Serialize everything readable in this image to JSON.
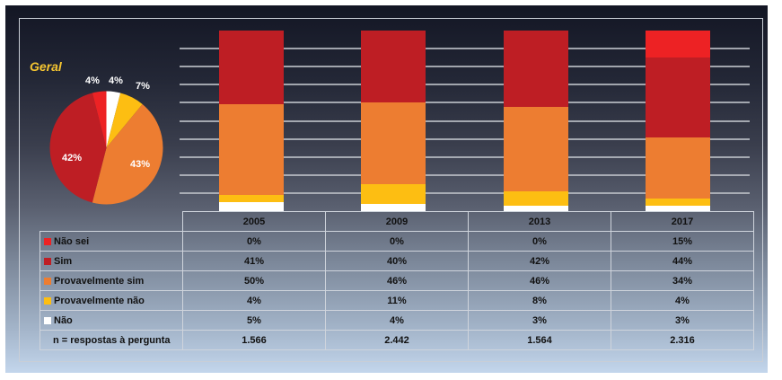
{
  "pie": {
    "title": "Geral",
    "slices": [
      {
        "label": "Não",
        "value": 4,
        "display": "4%",
        "color": "#FFFFFF"
      },
      {
        "label": "Provavelmente não",
        "value": 7,
        "display": "7%",
        "color": "#FDBE12"
      },
      {
        "label": "Provavelmente sim",
        "value": 43,
        "display": "43%",
        "color": "#ED7D31"
      },
      {
        "label": "Sim",
        "value": 42,
        "display": "42%",
        "color": "#BE1E24"
      },
      {
        "label": "Não sei",
        "value": 4,
        "display": "4%",
        "color": "#ED2224"
      }
    ]
  },
  "table": {
    "years": [
      "2005",
      "2009",
      "2013",
      "2017"
    ],
    "rows": [
      {
        "label": "Não sei",
        "color": "#ED2224",
        "values": [
          "0%",
          "0%",
          "0%",
          "15%"
        ]
      },
      {
        "label": "Sim",
        "color": "#BE1E24",
        "values": [
          "41%",
          "40%",
          "42%",
          "44%"
        ]
      },
      {
        "label": "Provavelmente sim",
        "color": "#ED7D31",
        "values": [
          "50%",
          "46%",
          "46%",
          "34%"
        ]
      },
      {
        "label": "Provavelmente não",
        "color": "#FDBE12",
        "values": [
          "4%",
          "11%",
          "8%",
          "4%"
        ]
      },
      {
        "label": "Não",
        "color": "#FFFFFF",
        "values": [
          "5%",
          "4%",
          "3%",
          "3%"
        ]
      }
    ],
    "n_row": {
      "label": "n = respostas à pergunta",
      "values": [
        "1.566",
        "2.442",
        "1.564",
        "2.316"
      ]
    }
  },
  "chart_data": [
    {
      "type": "pie",
      "title": "Geral",
      "categories": [
        "Não",
        "Provavelmente não",
        "Provavelmente sim",
        "Sim",
        "Não sei"
      ],
      "values": [
        4,
        7,
        43,
        42,
        4
      ],
      "colors": [
        "#FFFFFF",
        "#FDBE12",
        "#ED7D31",
        "#BE1E24",
        "#ED2224"
      ]
    },
    {
      "type": "bar",
      "stacked": true,
      "title": "",
      "categories": [
        "2005",
        "2009",
        "2013",
        "2017"
      ],
      "series": [
        {
          "name": "Não",
          "color": "#FFFFFF",
          "values": [
            5,
            4,
            3,
            3
          ]
        },
        {
          "name": "Provavelmente não",
          "color": "#FDBE12",
          "values": [
            4,
            11,
            8,
            4
          ]
        },
        {
          "name": "Provavelmente sim",
          "color": "#ED7D31",
          "values": [
            50,
            46,
            46,
            34
          ]
        },
        {
          "name": "Sim",
          "color": "#BE1E24",
          "values": [
            41,
            40,
            42,
            44
          ]
        },
        {
          "name": "Não sei",
          "color": "#ED2224",
          "values": [
            0,
            0,
            0,
            15
          ]
        }
      ],
      "n": [
        "1.566",
        "2.442",
        "1.564",
        "2.316"
      ],
      "xlabel": "",
      "ylabel": "",
      "ylim": [
        0,
        100
      ],
      "grid": true,
      "legend": "table-below"
    }
  ]
}
